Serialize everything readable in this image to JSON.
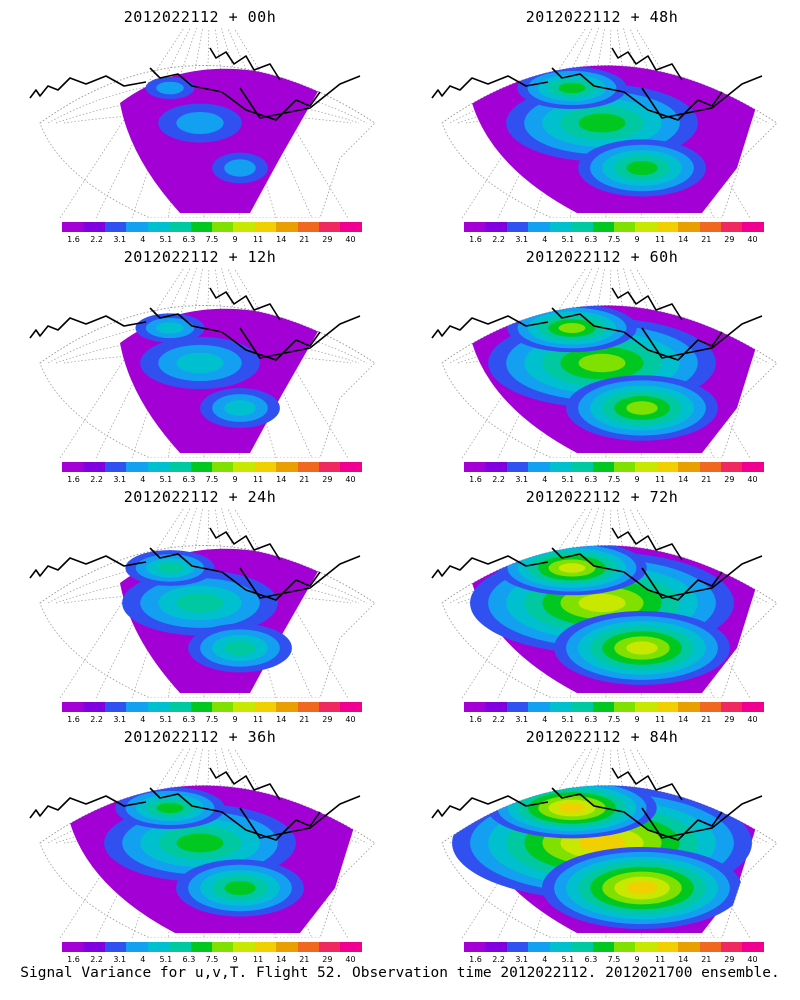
{
  "panels": [
    {
      "title": "2012022112 + 00h",
      "col": 0,
      "row": 0,
      "level": 0
    },
    {
      "title": "2012022112 + 48h",
      "col": 1,
      "row": 0,
      "level": 3
    },
    {
      "title": "2012022112 + 12h",
      "col": 0,
      "row": 1,
      "level": 1
    },
    {
      "title": "2012022112 + 60h",
      "col": 1,
      "row": 1,
      "level": 4
    },
    {
      "title": "2012022112 + 24h",
      "col": 0,
      "row": 2,
      "level": 2
    },
    {
      "title": "2012022112 + 72h",
      "col": 1,
      "row": 2,
      "level": 5
    },
    {
      "title": "2012022112 + 36h",
      "col": 0,
      "row": 3,
      "level": 3
    },
    {
      "title": "2012022112 + 84h",
      "col": 1,
      "row": 3,
      "level": 6
    }
  ],
  "colorbar": {
    "colors": [
      "#a300d6",
      "#8000e0",
      "#3050f0",
      "#14a0f0",
      "#00c0d0",
      "#00c8a0",
      "#00c820",
      "#80e000",
      "#c8e800",
      "#f0d000",
      "#e8a000",
      "#f06820",
      "#f02860",
      "#f00090"
    ],
    "ticks": [
      "1.6",
      "2.2",
      "3.1",
      "4",
      "5.1",
      "6.3",
      "7.5",
      "9",
      "11",
      "14",
      "21",
      "29",
      "40"
    ]
  },
  "caption": "Signal Variance for u,v,T. Flight 52. Observation time 2012022112. 2012021700 ensemble."
}
